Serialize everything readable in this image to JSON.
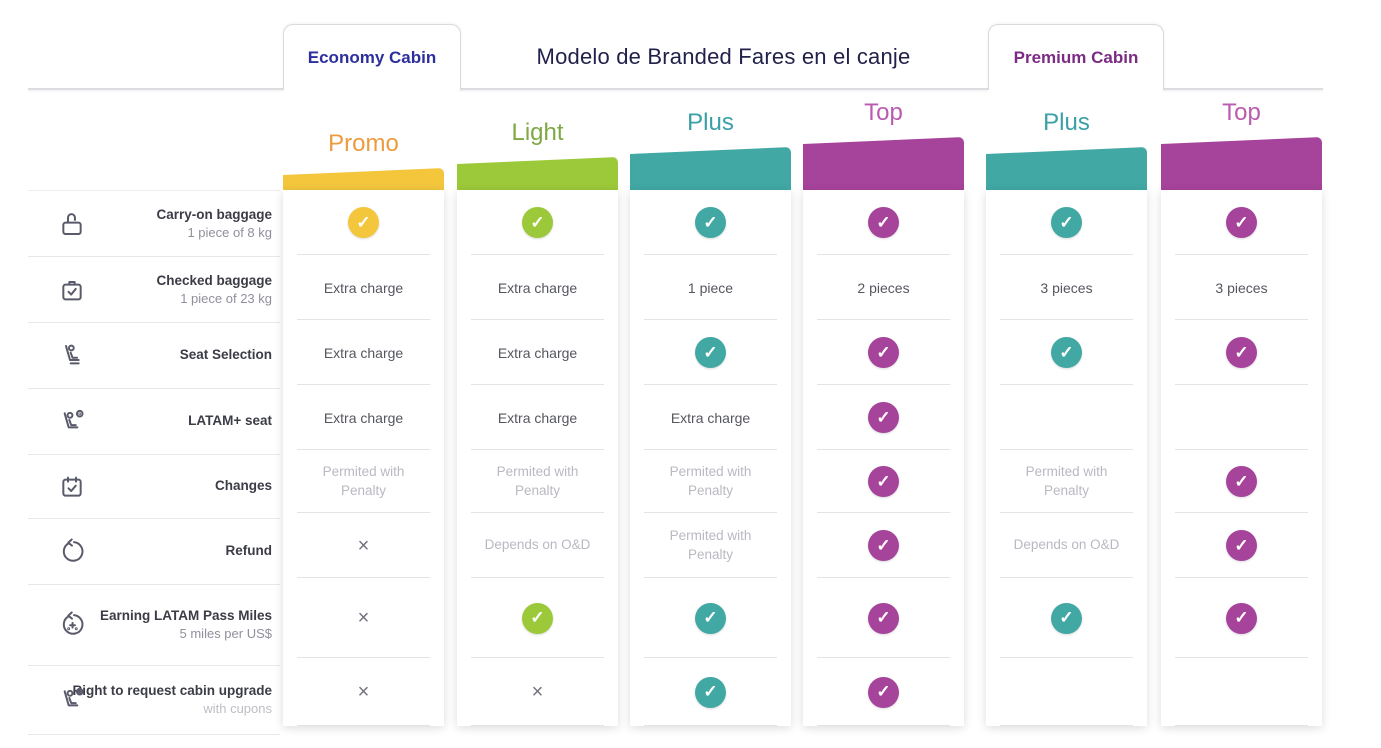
{
  "header": {
    "title": "Modelo de Branded Fares en el canje",
    "tabs": [
      {
        "label": "Economy Cabin",
        "color": "#2d2f9e"
      },
      {
        "label": "Premium Cabin",
        "color": "#7c2b84"
      }
    ]
  },
  "fares": [
    {
      "name": "Promo",
      "cabin": "Economy",
      "tier": 1,
      "color": "#f3c63c",
      "label_color": "#ec9b3f"
    },
    {
      "name": "Light",
      "cabin": "Economy",
      "tier": 2,
      "color": "#9cc939",
      "label_color": "#7fa844"
    },
    {
      "name": "Plus",
      "cabin": "Economy",
      "tier": 3,
      "color": "#41a8a4",
      "label_color": "#3aa0a8"
    },
    {
      "name": "Top",
      "cabin": "Economy",
      "tier": 4,
      "color": "#a6439b",
      "label_color": "#ba5baf"
    },
    {
      "name": "Plus",
      "cabin": "Premium",
      "tier": 3,
      "color": "#41a8a4",
      "label_color": "#3aa0a8"
    },
    {
      "name": "Top",
      "cabin": "Premium",
      "tier": 4,
      "color": "#a6439b",
      "label_color": "#ba5baf"
    }
  ],
  "rows": [
    {
      "label": "Carry-on baggage",
      "sublabel": "1 piece of 8 kg",
      "icon": "carry-on-baggage-icon",
      "cells": [
        {
          "type": "check"
        },
        {
          "type": "check"
        },
        {
          "type": "check"
        },
        {
          "type": "check"
        },
        {
          "type": "check"
        },
        {
          "type": "check"
        }
      ]
    },
    {
      "label": "Checked baggage",
      "sublabel": "1 piece of 23 kg",
      "icon": "checked-baggage-icon",
      "cells": [
        {
          "type": "text",
          "text": "Extra charge"
        },
        {
          "type": "text",
          "text": "Extra charge"
        },
        {
          "type": "text",
          "text": "1 piece"
        },
        {
          "type": "text",
          "text": "2 pieces"
        },
        {
          "type": "text",
          "text": "3 pieces"
        },
        {
          "type": "text",
          "text": "3 pieces"
        }
      ]
    },
    {
      "label": "Seat Selection",
      "sublabel": "",
      "icon": "seat-selection-icon",
      "cells": [
        {
          "type": "text",
          "text": "Extra charge"
        },
        {
          "type": "text",
          "text": "Extra charge"
        },
        {
          "type": "check"
        },
        {
          "type": "check"
        },
        {
          "type": "check"
        },
        {
          "type": "check"
        }
      ]
    },
    {
      "label": "LATAM+ seat",
      "sublabel": "",
      "icon": "latam-plus-seat-icon",
      "cells": [
        {
          "type": "text",
          "text": "Extra charge"
        },
        {
          "type": "text",
          "text": "Extra charge"
        },
        {
          "type": "text",
          "text": "Extra charge"
        },
        {
          "type": "check"
        },
        {
          "type": "empty"
        },
        {
          "type": "empty"
        }
      ]
    },
    {
      "label": "Changes",
      "sublabel": "",
      "icon": "changes-icon",
      "cells": [
        {
          "type": "muted",
          "text": "Permited with Penalty"
        },
        {
          "type": "muted",
          "text": "Permited with Penalty"
        },
        {
          "type": "muted",
          "text": "Permited with Penalty"
        },
        {
          "type": "check"
        },
        {
          "type": "muted",
          "text": "Permited with Penalty"
        },
        {
          "type": "check"
        }
      ]
    },
    {
      "label": "Refund",
      "sublabel": "",
      "icon": "refund-icon",
      "cells": [
        {
          "type": "cross"
        },
        {
          "type": "muted",
          "text": "Depends on O&D"
        },
        {
          "type": "muted",
          "text": "Permited with Penalty"
        },
        {
          "type": "check"
        },
        {
          "type": "muted",
          "text": "Depends on O&D"
        },
        {
          "type": "check"
        }
      ]
    },
    {
      "label": "Earning LATAM Pass Miles",
      "sublabel": "5 miles per US$",
      "icon": "earning-miles-icon",
      "cells": [
        {
          "type": "cross"
        },
        {
          "type": "check"
        },
        {
          "type": "check"
        },
        {
          "type": "check"
        },
        {
          "type": "check"
        },
        {
          "type": "check"
        }
      ]
    },
    {
      "label": "Right to request cabin upgrade",
      "sublabel": "with cupons",
      "sublabel_muted": true,
      "icon": "cabin-upgrade-icon",
      "cells": [
        {
          "type": "cross"
        },
        {
          "type": "cross"
        },
        {
          "type": "check"
        },
        {
          "type": "check"
        },
        {
          "type": "empty"
        },
        {
          "type": "empty"
        }
      ]
    }
  ],
  "symbols": {
    "check": "✓",
    "cross": "×"
  },
  "colors": {
    "check_glyph": "#ffffff",
    "cross": "#73737d",
    "cell_text": "#55565f",
    "muted_text": "#b9b9c2",
    "row_label": "#3b3c46",
    "divider": "#e4e4e8",
    "tab_border": "#d9d9de",
    "title": "#21214b"
  }
}
